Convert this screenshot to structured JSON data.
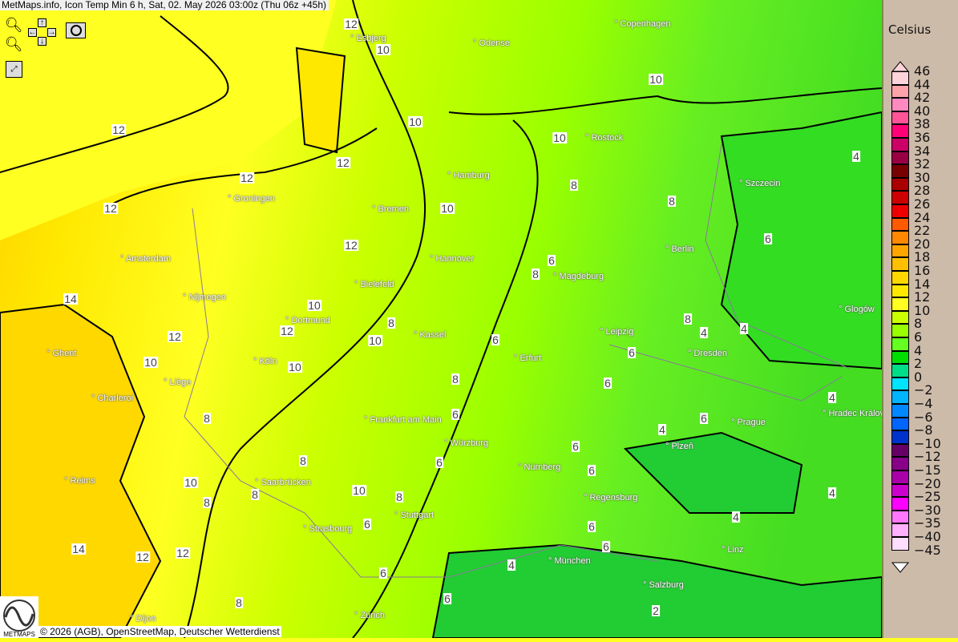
{
  "title": "MetMaps.info, Icon Temp Min 6 h, Sat, 02. May 2026 03:00z (Thu 06z +45h)",
  "controls": {
    "zoom_in": "zoom-in-icon",
    "zoom_out": "zoom-out-icon",
    "pan": "pan-arrows-icon",
    "screenshot": "camera-icon",
    "fullscreen": "fullscreen-icon"
  },
  "legend": {
    "unit": "Celsius",
    "labels": [
      "46",
      "44",
      "42",
      "40",
      "38",
      "36",
      "34",
      "32",
      "30",
      "28",
      "26",
      "24",
      "22",
      "20",
      "18",
      "16",
      "14",
      "12",
      "10",
      "8",
      "6",
      "4",
      "2",
      "0",
      "−2",
      "−4",
      "−6",
      "−8",
      "−10",
      "−12",
      "−15",
      "−20",
      "−25",
      "−30",
      "−35",
      "−40",
      "−45"
    ],
    "colors": [
      "#ffd3da",
      "#ffa3aa",
      "#ff8ac0",
      "#ff5596",
      "#ff0077",
      "#cc0066",
      "#990044",
      "#770000",
      "#aa0000",
      "#cc0000",
      "#ee0000",
      "#ff5a00",
      "#ff8800",
      "#ffa500",
      "#ffc000",
      "#ffd800",
      "#ffe800",
      "#ffff22",
      "#ccff00",
      "#99ff00",
      "#66ff22",
      "#00dd00",
      "#00dd88",
      "#00e4ff",
      "#00b4ff",
      "#0088ff",
      "#0066ff",
      "#0033cc",
      "#660066",
      "#880088",
      "#aa00aa",
      "#cc00cc",
      "#ff00ff",
      "#ff77ff",
      "#ffb0ff",
      "#ffddff"
    ]
  },
  "cities": [
    "Esbjerg",
    "Odense",
    "Copenhagen",
    "Rostock",
    "Hamburg",
    "Szczecin",
    "Groningen",
    "Bremen",
    "Berlin",
    "Amsterdam",
    "Hannover",
    "Magdeburg",
    "Bielefeld",
    "Nijmegen",
    "Dortmund",
    "Glogów",
    "Leipzig",
    "Kassel",
    "Ghent",
    "Köln",
    "Erfurt",
    "Dresden",
    "Liège",
    "Charleroi",
    "Hradec Králové",
    "Frankfurt am Main",
    "Prague",
    "Würzburg",
    "Plzeň",
    "Nürnberg",
    "Reims",
    "Saarbrücken",
    "Regensburg",
    "Stuttgart",
    "Strasbourg",
    "Linz",
    "München",
    "Salzburg",
    "Dijon",
    "Zürich"
  ],
  "contour_labels": [
    "12",
    "10",
    "12",
    "10",
    "10",
    "10",
    "8",
    "12",
    "12",
    "12",
    "10",
    "8",
    "12",
    "8",
    "6",
    "14",
    "12",
    "10",
    "10",
    "8",
    "12",
    "10",
    "8",
    "6",
    "10",
    "8",
    "6",
    "8",
    "6",
    "4",
    "8",
    "4",
    "10",
    "8",
    "8",
    "6",
    "6",
    "6",
    "6",
    "10",
    "14",
    "12",
    "12",
    "8",
    "6",
    "6",
    "4",
    "4",
    "4",
    "6",
    "4",
    "4",
    "2",
    "6",
    "8",
    "6",
    "6",
    "4",
    "6"
  ],
  "credit": "© 2026 (AGB), OpenStreetMap, Deutscher Wetterdienst",
  "logo_text": "METMAPS"
}
